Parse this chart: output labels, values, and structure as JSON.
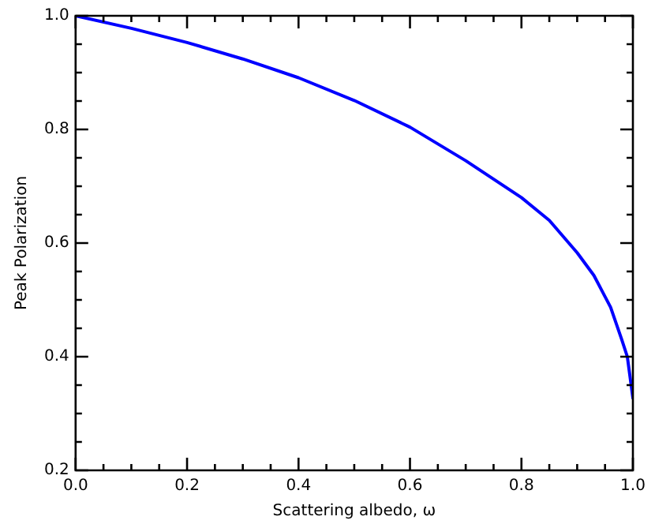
{
  "chart_data": {
    "type": "line",
    "xlabel": "Scattering albedo, ω",
    "ylabel": "Peak Polarization",
    "x": [
      0,
      0.1,
      0.2,
      0.3,
      0.4,
      0.5,
      0.6,
      0.7,
      0.8,
      0.85,
      0.9,
      0.93,
      0.96,
      0.98,
      0.99,
      1.0
    ],
    "series": [
      {
        "color": "#0000ff",
        "values": [
          1.0,
          0.978,
          0.953,
          0.924,
          0.891,
          0.851,
          0.804,
          0.745,
          0.68,
          0.64,
          0.583,
          0.543,
          0.487,
          0.43,
          0.4,
          0.327
        ]
      }
    ],
    "xlim": [
      0,
      1
    ],
    "ylim": [
      0.2,
      1.0
    ],
    "xticks": [
      {
        "value": 0,
        "label": "0.0"
      },
      {
        "value": 0.05,
        "label": null
      },
      {
        "value": 0.1,
        "label": null
      },
      {
        "value": 0.15,
        "label": null
      },
      0.2,
      {
        "value": 0.25,
        "label": null
      },
      {
        "value": 0.3,
        "label": null
      },
      {
        "value": 0.35,
        "label": null
      },
      0.4,
      {
        "value": 0.45,
        "label": null
      },
      {
        "value": 0.5,
        "label": null
      },
      {
        "value": 0.55,
        "label": null
      },
      0.6,
      {
        "value": 0.65,
        "label": null
      },
      {
        "value": 0.7,
        "label": null
      },
      {
        "value": 0.75,
        "label": null
      },
      0.8,
      {
        "value": 0.85,
        "label": null
      },
      {
        "value": 0.9,
        "label": null
      },
      {
        "value": 0.95,
        "label": null
      },
      {
        "value": 1,
        "label": "1.0"
      }
    ],
    "yticks": [
      0.2,
      {
        "value": 0.25,
        "label": null
      },
      {
        "value": 0.3,
        "label": null
      },
      {
        "value": 0.35,
        "label": null
      },
      0.4,
      {
        "value": 0.45,
        "label": null
      },
      {
        "value": 0.5,
        "label": null
      },
      {
        "value": 0.55,
        "label": null
      },
      0.6,
      {
        "value": 0.65,
        "label": null
      },
      {
        "value": 0.7,
        "label": null
      },
      {
        "value": 0.75,
        "label": null
      },
      0.8,
      {
        "value": 0.85,
        "label": null
      },
      {
        "value": 0.9,
        "label": null
      },
      {
        "value": 0.95,
        "label": null
      },
      {
        "value": 1,
        "label": "1.0"
      }
    ],
    "grid": false,
    "legend": false,
    "marker": "none",
    "line_style": "solid"
  }
}
